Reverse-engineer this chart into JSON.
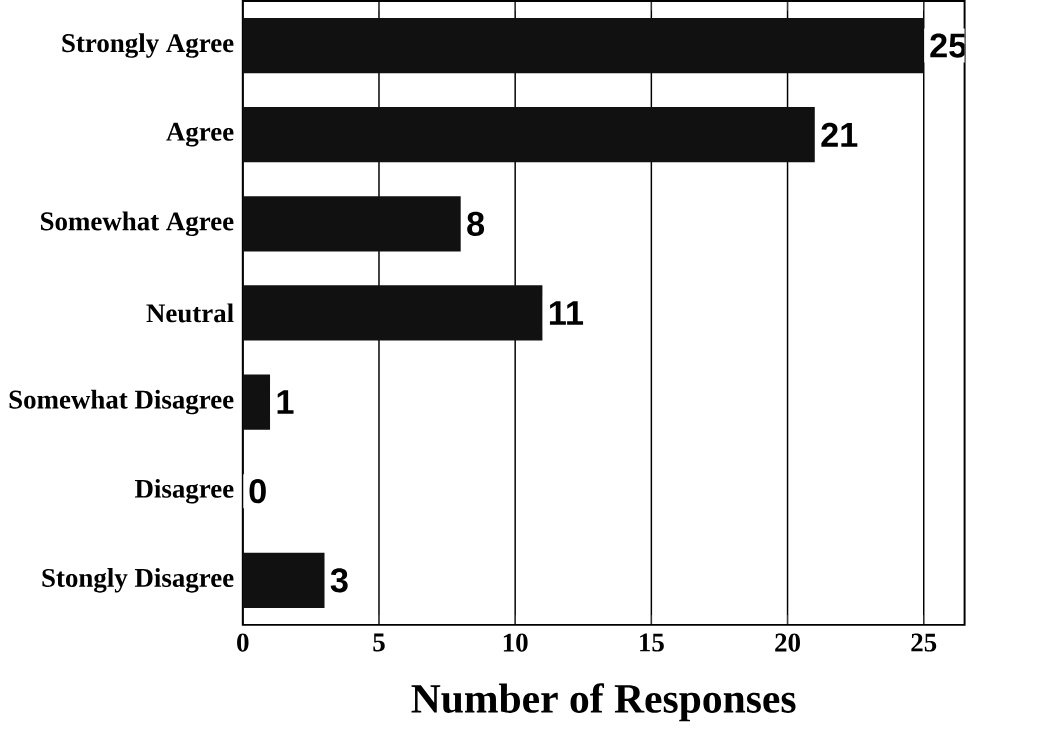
{
  "chart_data": {
    "type": "bar",
    "orientation": "horizontal",
    "xlabel": "Number of Responses",
    "categories": [
      "Strongly Agree",
      "Agree",
      "Somewhat Agree",
      "Neutral",
      "Somewhat Disagree",
      "Disagree",
      "Stongly Disagree"
    ],
    "values": [
      25,
      21,
      8,
      11,
      1,
      0,
      3
    ],
    "color": "#111111",
    "data_labels": true,
    "xlim": [
      0,
      26.5
    ],
    "xticks": [
      0,
      5,
      10,
      15,
      20,
      25
    ],
    "grid": "x"
  }
}
